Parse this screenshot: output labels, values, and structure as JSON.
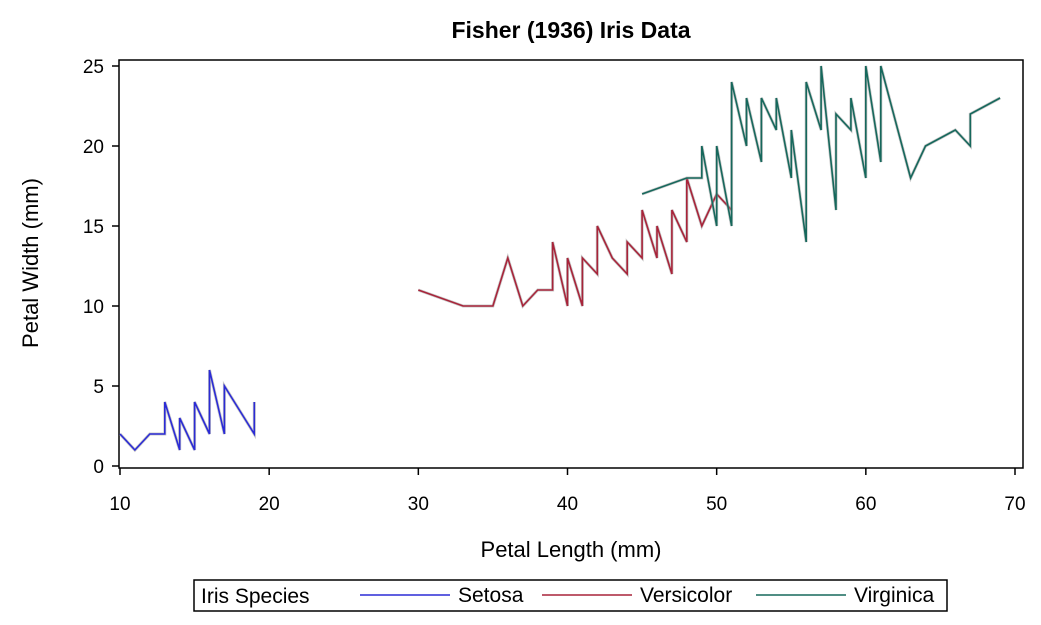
{
  "chart_data": {
    "type": "line",
    "title": "Fisher (1936) Iris Data",
    "xlabel": "Petal Length (mm)",
    "ylabel": "Petal Width (mm)",
    "xlim": [
      10,
      70
    ],
    "ylim": [
      0,
      25
    ],
    "x_ticks": [
      10,
      20,
      30,
      40,
      50,
      60,
      70
    ],
    "y_ticks": [
      0,
      5,
      10,
      15,
      20,
      25
    ],
    "grid": false,
    "legend": {
      "title": "Iris Species",
      "placement": "bottom"
    },
    "series": [
      {
        "name": "Setosa",
        "color": "#2b2bd6",
        "points": [
          [
            10,
            2
          ],
          [
            11,
            1
          ],
          [
            12,
            2
          ],
          [
            13,
            2
          ],
          [
            13,
            4
          ],
          [
            14,
            1
          ],
          [
            14,
            3
          ],
          [
            15,
            1
          ],
          [
            15,
            4
          ],
          [
            16,
            2
          ],
          [
            16,
            6
          ],
          [
            17,
            2
          ],
          [
            17,
            5
          ],
          [
            19,
            2
          ],
          [
            19,
            4
          ]
        ]
      },
      {
        "name": "Versicolor",
        "color": "#a8243a",
        "points": [
          [
            30,
            11
          ],
          [
            33,
            10
          ],
          [
            35,
            10
          ],
          [
            36,
            13
          ],
          [
            37,
            10
          ],
          [
            38,
            11
          ],
          [
            39,
            11
          ],
          [
            39,
            14
          ],
          [
            40,
            10
          ],
          [
            40,
            13
          ],
          [
            41,
            10
          ],
          [
            41,
            13
          ],
          [
            42,
            12
          ],
          [
            42,
            15
          ],
          [
            43,
            13
          ],
          [
            44,
            12
          ],
          [
            44,
            14
          ],
          [
            45,
            13
          ],
          [
            45,
            16
          ],
          [
            46,
            13
          ],
          [
            46,
            15
          ],
          [
            47,
            12
          ],
          [
            47,
            16
          ],
          [
            48,
            14
          ],
          [
            48,
            18
          ],
          [
            49,
            15
          ],
          [
            50,
            17
          ],
          [
            51,
            16
          ]
        ]
      },
      {
        "name": "Virginica",
        "color": "#16685c",
        "points": [
          [
            45,
            17
          ],
          [
            48,
            18
          ],
          [
            49,
            18
          ],
          [
            49,
            20
          ],
          [
            50,
            15
          ],
          [
            50,
            20
          ],
          [
            51,
            15
          ],
          [
            51,
            24
          ],
          [
            52,
            20
          ],
          [
            52,
            23
          ],
          [
            53,
            19
          ],
          [
            53,
            23
          ],
          [
            54,
            21
          ],
          [
            54,
            23
          ],
          [
            55,
            18
          ],
          [
            55,
            21
          ],
          [
            56,
            14
          ],
          [
            56,
            24
          ],
          [
            57,
            21
          ],
          [
            57,
            25
          ],
          [
            58,
            16
          ],
          [
            58,
            22
          ],
          [
            59,
            21
          ],
          [
            59,
            23
          ],
          [
            60,
            18
          ],
          [
            60,
            25
          ],
          [
            61,
            19
          ],
          [
            61,
            25
          ],
          [
            63,
            18
          ],
          [
            64,
            20
          ],
          [
            66,
            21
          ],
          [
            67,
            20
          ],
          [
            67,
            22
          ],
          [
            69,
            23
          ]
        ]
      }
    ]
  }
}
